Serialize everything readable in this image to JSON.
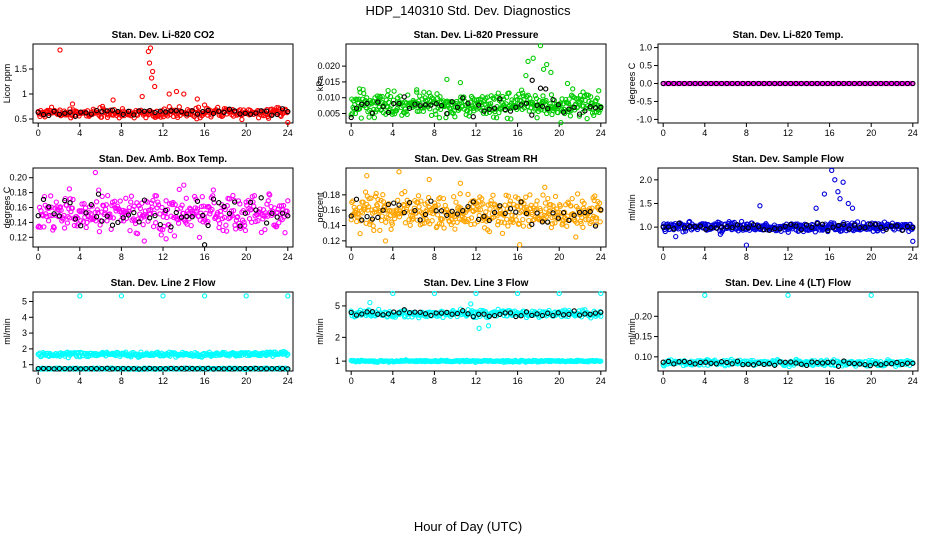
{
  "page": {
    "title": "HDP_140310  Std. Dev. Diagnostics",
    "xlabel": "Hour of Day (UTC)"
  },
  "chart_data": [
    {
      "id": "co2",
      "type": "scatter",
      "title": "Stan. Dev. Li-820 CO2",
      "ylabel": "Licor ppm",
      "xlim": [
        0,
        24
      ],
      "ylim": [
        0.42,
        2.0
      ],
      "xticks": [
        0,
        4,
        8,
        12,
        16,
        20,
        24
      ],
      "xtick_labels": [
        "0",
        "4",
        "8",
        "12",
        "16",
        "20",
        "24"
      ],
      "yticks": [
        0.5,
        1.0,
        1.5
      ],
      "ytick_labels": [
        "0.5",
        "1",
        "1.5"
      ],
      "series": [
        {
          "color": "#ff0000",
          "base": 0.62,
          "spread": 0.08,
          "count": 300,
          "points": [
            [
              2.1,
              1.88
            ],
            [
              10.6,
              1.85
            ],
            [
              10.8,
              1.92
            ],
            [
              10.7,
              1.62
            ],
            [
              11.0,
              1.45
            ],
            [
              10.9,
              1.32
            ],
            [
              11.2,
              1.15
            ],
            [
              12.6,
              1.0
            ],
            [
              13.3,
              1.05
            ],
            [
              14.0,
              1.0
            ],
            [
              15.3,
              0.9
            ],
            [
              16.0,
              0.78
            ],
            [
              7.2,
              0.88
            ],
            [
              10.0,
              0.95
            ],
            [
              24.0,
              0.43
            ],
            [
              3.3,
              0.8
            ]
          ]
        },
        {
          "color": "#000000",
          "base": 0.63,
          "spread": 0.06,
          "count": 48,
          "points": []
        }
      ]
    },
    {
      "id": "pressure",
      "type": "scatter",
      "title": "Stan. Dev. Li-820 Pressure",
      "ylabel": "kPa",
      "xlim": [
        0,
        24
      ],
      "ylim": [
        0.002,
        0.027
      ],
      "xticks": [
        0,
        4,
        8,
        12,
        16,
        20,
        24
      ],
      "xtick_labels": [
        "0",
        "4",
        "8",
        "12",
        "16",
        "20",
        "24"
      ],
      "yticks": [
        0.005,
        0.01,
        0.015,
        0.02
      ],
      "ytick_labels": [
        "0.005",
        "0.010",
        "0.015",
        "0.020"
      ],
      "series": [
        {
          "color": "#00cc00",
          "base": 0.0075,
          "spread": 0.003,
          "count": 420,
          "points": [
            [
              18.2,
              0.0265
            ],
            [
              17.5,
              0.0225
            ],
            [
              18.8,
              0.0205
            ],
            [
              17.0,
              0.0215
            ],
            [
              19.2,
              0.018
            ],
            [
              16.8,
              0.017
            ],
            [
              18.5,
              0.019
            ],
            [
              9.2,
              0.0158
            ],
            [
              10.5,
              0.0148
            ],
            [
              6.3,
              0.0125
            ],
            [
              20.8,
              0.0145
            ],
            [
              21.3,
              0.0128
            ],
            [
              22.3,
              0.0118
            ],
            [
              23.8,
              0.0122
            ],
            [
              0.8,
              0.0128
            ],
            [
              3.5,
              0.0108
            ]
          ]
        },
        {
          "color": "#000000",
          "base": 0.0072,
          "spread": 0.0025,
          "count": 48,
          "points": [
            [
              17.4,
              0.0155
            ],
            [
              18.2,
              0.013
            ],
            [
              18.7,
              0.0128
            ]
          ]
        }
      ]
    },
    {
      "id": "temp",
      "type": "scatter",
      "title": "Stan. Dev. Li-820 Temp.",
      "ylabel": "degrees C",
      "xlim": [
        0,
        24
      ],
      "ylim": [
        -1.1,
        1.1
      ],
      "xticks": [
        0,
        4,
        8,
        12,
        16,
        20,
        24
      ],
      "xtick_labels": [
        "0",
        "4",
        "8",
        "12",
        "16",
        "20",
        "24"
      ],
      "yticks": [
        -1.0,
        -0.5,
        0.0,
        0.5,
        1.0
      ],
      "ytick_labels": [
        "-1.0",
        "-0.5",
        "0.0",
        "0.5",
        "1.0"
      ],
      "series": [
        {
          "color": "#ff00ff",
          "base": 0.0,
          "spread": 0.0,
          "count": 160,
          "points": []
        },
        {
          "color": "#000000",
          "base": 0.0,
          "spread": 0.0,
          "count": 48,
          "points": []
        }
      ]
    },
    {
      "id": "boxtemp",
      "type": "scatter",
      "title": "Stan. Dev. Amb. Box Temp.",
      "ylabel": "degrees C",
      "xlim": [
        0,
        24
      ],
      "ylim": [
        0.107,
        0.213
      ],
      "xticks": [
        0,
        4,
        8,
        12,
        16,
        20,
        24
      ],
      "xtick_labels": [
        "0",
        "4",
        "8",
        "12",
        "16",
        "20",
        "24"
      ],
      "yticks": [
        0.12,
        0.14,
        0.16,
        0.18,
        0.2
      ],
      "ytick_labels": [
        "0.12",
        "0.14",
        "0.16",
        "0.18",
        "0.20"
      ],
      "series": [
        {
          "color": "#ff00ff",
          "base": 0.152,
          "spread": 0.02,
          "count": 360,
          "points": [
            [
              5.5,
              0.207
            ],
            [
              3.0,
              0.185
            ],
            [
              14.0,
              0.19
            ],
            [
              10.2,
              0.115
            ],
            [
              12.3,
              0.118
            ]
          ]
        },
        {
          "color": "#000000",
          "base": 0.152,
          "spread": 0.016,
          "count": 48,
          "points": [
            [
              16.0,
              0.11
            ],
            [
              5.8,
              0.178
            ]
          ]
        }
      ]
    },
    {
      "id": "rh",
      "type": "scatter",
      "title": "Stan. Dev. Gas Stream RH",
      "ylabel": "percent",
      "xlim": [
        0,
        24
      ],
      "ylim": [
        0.112,
        0.215
      ],
      "xticks": [
        0,
        4,
        8,
        12,
        16,
        20,
        24
      ],
      "xtick_labels": [
        "0",
        "4",
        "8",
        "12",
        "16",
        "20",
        "24"
      ],
      "yticks": [
        0.12,
        0.14,
        0.16,
        0.18
      ],
      "ytick_labels": [
        "0.12",
        "0.14",
        "0.16",
        "0.18"
      ],
      "series": [
        {
          "color": "#ffa500",
          "base": 0.158,
          "spread": 0.018,
          "count": 420,
          "points": [
            [
              1.5,
              0.205
            ],
            [
              7.5,
              0.2
            ],
            [
              4.6,
              0.21
            ],
            [
              10.5,
              0.195
            ],
            [
              16.2,
              0.115
            ],
            [
              3.3,
              0.12
            ]
          ]
        },
        {
          "color": "#000000",
          "base": 0.158,
          "spread": 0.014,
          "count": 48,
          "points": []
        }
      ]
    },
    {
      "id": "flow",
      "type": "scatter",
      "title": "Stan. Dev. Sample Flow",
      "ylabel": "ml/min",
      "xlim": [
        0,
        24
      ],
      "ylim": [
        0.58,
        2.25
      ],
      "xticks": [
        0,
        4,
        8,
        12,
        16,
        20,
        24
      ],
      "xtick_labels": [
        "0",
        "4",
        "8",
        "12",
        "16",
        "20",
        "24"
      ],
      "yticks": [
        1.0,
        1.5,
        2.0
      ],
      "ytick_labels": [
        "1.0",
        "1.5",
        "2.0"
      ],
      "series": [
        {
          "color": "#0000dd",
          "base": 1.0,
          "spread": 0.08,
          "count": 380,
          "points": [
            [
              16.2,
              2.2
            ],
            [
              16.5,
              2.0
            ],
            [
              17.3,
              1.95
            ],
            [
              15.5,
              1.7
            ],
            [
              17.0,
              1.6
            ],
            [
              16.8,
              1.75
            ],
            [
              17.8,
              1.5
            ],
            [
              18.2,
              1.4
            ],
            [
              8.0,
              0.62
            ],
            [
              1.2,
              0.8
            ],
            [
              24.0,
              0.7
            ],
            [
              5.5,
              0.85
            ],
            [
              9.3,
              1.45
            ],
            [
              14.7,
              1.4
            ]
          ]
        },
        {
          "color": "#000000",
          "base": 1.0,
          "spread": 0.06,
          "count": 48,
          "points": []
        }
      ]
    },
    {
      "id": "line2",
      "type": "scatter",
      "title": "Stan. Dev. Line 2 Flow",
      "ylabel": "ml/min",
      "xlim": [
        0,
        24
      ],
      "ylim": [
        0.6,
        5.6
      ],
      "xticks": [
        0,
        4,
        8,
        12,
        16,
        20,
        24
      ],
      "xtick_labels": [
        "0",
        "4",
        "8",
        "12",
        "16",
        "20",
        "24"
      ],
      "yticks": [
        1,
        2,
        3,
        4,
        5
      ],
      "ytick_labels": [
        "1",
        "2",
        "3",
        "4",
        "5"
      ],
      "series": [
        {
          "color": "#00ffff",
          "base": 1.65,
          "spread": 0.12,
          "count": 300,
          "points": [
            [
              4.0,
              5.35
            ],
            [
              8.0,
              5.35
            ],
            [
              12.0,
              5.35
            ],
            [
              16.0,
              5.35
            ],
            [
              20.0,
              5.35
            ],
            [
              24.0,
              5.35
            ]
          ]
        },
        {
          "color": "#00ffff",
          "base": 0.75,
          "spread": 0.03,
          "count": 200,
          "points": []
        },
        {
          "color": "#000000",
          "base": 0.75,
          "spread": 0.02,
          "count": 48,
          "points": []
        }
      ]
    },
    {
      "id": "line3",
      "type": "scatter",
      "title": "Stan. Dev. Line 3 Flow",
      "ylabel": "ml/min",
      "xlim": [
        0,
        24
      ],
      "ylim": [
        0.75,
        7.5
      ],
      "ylog": true,
      "xticks": [
        0,
        4,
        8,
        12,
        16,
        20,
        24
      ],
      "xtick_labels": [
        "0",
        "4",
        "8",
        "12",
        "16",
        "20",
        "24"
      ],
      "yticks": [
        1,
        2,
        5
      ],
      "ytick_labels": [
        "1",
        "2",
        "5"
      ],
      "series": [
        {
          "color": "#00ffff",
          "base": 4.0,
          "spread": 0.35,
          "count": 300,
          "points": [
            [
              4.0,
              7.2
            ],
            [
              8.0,
              7.2
            ],
            [
              12.0,
              7.2
            ],
            [
              16.0,
              7.2
            ],
            [
              20.0,
              7.2
            ],
            [
              24.0,
              7.2
            ],
            [
              12.3,
              2.6
            ],
            [
              13.2,
              2.8
            ],
            [
              1.8,
              5.5
            ],
            [
              11.5,
              5.3
            ]
          ]
        },
        {
          "color": "#00ffff",
          "base": 1.0,
          "spread": 0.02,
          "count": 220,
          "points": []
        },
        {
          "color": "#000000",
          "base": 4.0,
          "spread": 0.3,
          "count": 48,
          "points": []
        }
      ]
    },
    {
      "id": "line4",
      "type": "scatter",
      "title": "Stan. Dev. Line 4 (LT) Flow",
      "ylabel": "ml/min",
      "xlim": [
        0,
        24
      ],
      "ylim": [
        0.065,
        0.26
      ],
      "xticks": [
        0,
        4,
        8,
        12,
        16,
        20,
        24
      ],
      "xtick_labels": [
        "0",
        "4",
        "8",
        "12",
        "16",
        "20",
        "24"
      ],
      "yticks": [
        0.1,
        0.15,
        0.2
      ],
      "ytick_labels": [
        "0.10",
        "0.15",
        "0.20"
      ],
      "series": [
        {
          "color": "#00ffff",
          "base": 0.085,
          "spread": 0.006,
          "count": 320,
          "points": [
            [
              4.0,
              0.252
            ],
            [
              12.0,
              0.252
            ],
            [
              20.0,
              0.252
            ]
          ]
        },
        {
          "color": "#000000",
          "base": 0.085,
          "spread": 0.005,
          "count": 48,
          "points": []
        }
      ]
    }
  ]
}
